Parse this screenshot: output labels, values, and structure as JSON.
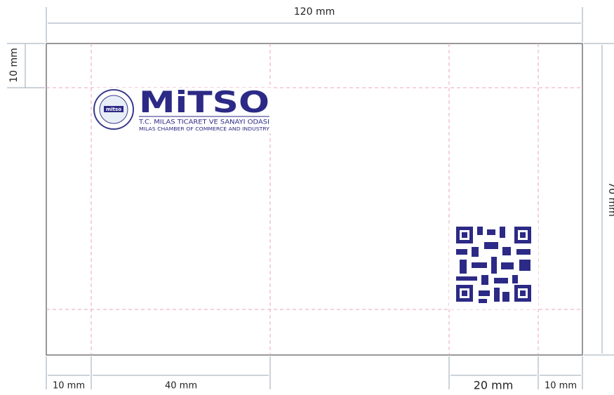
{
  "dimensions": {
    "width": "120 mm",
    "height": "70 mm",
    "top_margin": "10 mm",
    "left_margin": "10 mm",
    "logo_width": "40 mm",
    "qr_width": "20 mm",
    "right_margin": "10 mm"
  },
  "logo": {
    "wordmark": "MiTSO",
    "line1": "T.C. MILAS TICARET VE SANAYI ODASI",
    "line2": "MILAS CHAMBER OF COMMERCE AND INDUSTRY",
    "seal": "mitso"
  }
}
